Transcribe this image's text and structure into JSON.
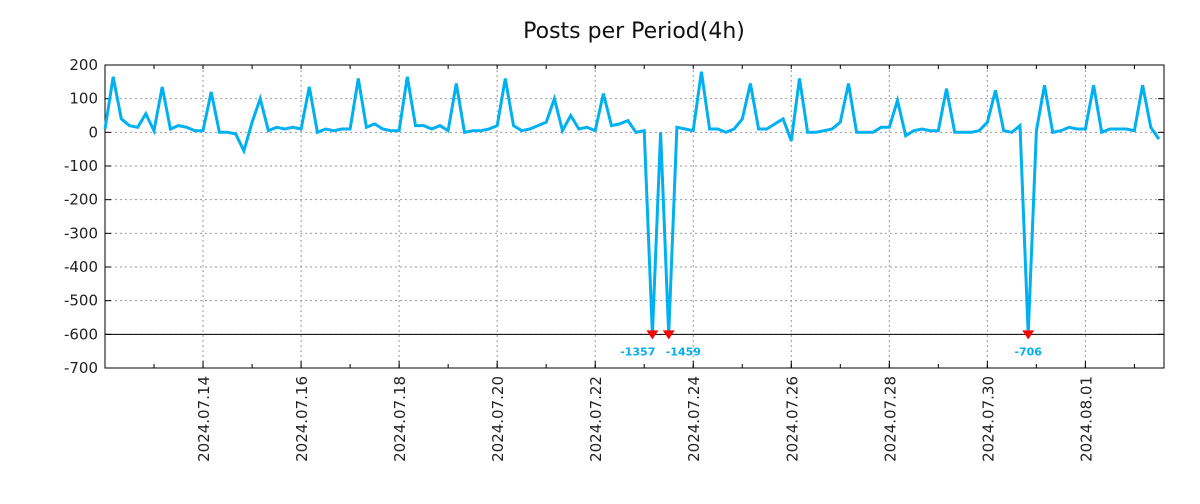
{
  "chart_data": {
    "type": "line",
    "title": "Posts per Period(4h)",
    "xlabel": "",
    "ylabel": "",
    "ylim": [
      -700,
      200
    ],
    "clip_floor": -600,
    "grid": true,
    "period_hours": 4,
    "start_date": "2024.07.12",
    "y_ticks": [
      "200",
      "100",
      "0",
      "-100",
      "-200",
      "-300",
      "-400",
      "-500",
      "-600",
      "-700"
    ],
    "x_tick_labels": [
      "2024.07.14",
      "2024.07.16",
      "2024.07.18",
      "2024.07.20",
      "2024.07.22",
      "2024.07.24",
      "2024.07.26",
      "2024.07.28",
      "2024.07.30",
      "2024.08.01"
    ],
    "series": [
      {
        "name": "posts",
        "color": "#00b0f0",
        "values": [
          10,
          165,
          40,
          20,
          15,
          55,
          5,
          135,
          10,
          20,
          15,
          5,
          5,
          120,
          0,
          0,
          -5,
          -55,
          30,
          100,
          5,
          15,
          10,
          15,
          10,
          135,
          0,
          10,
          5,
          10,
          10,
          160,
          15,
          25,
          10,
          5,
          5,
          165,
          20,
          20,
          10,
          20,
          5,
          145,
          0,
          5,
          5,
          10,
          20,
          160,
          20,
          5,
          10,
          20,
          30,
          100,
          5,
          50,
          10,
          15,
          5,
          115,
          20,
          25,
          35,
          0,
          5,
          -1357,
          0,
          -1459,
          15,
          10,
          5,
          180,
          10,
          10,
          0,
          10,
          40,
          145,
          10,
          10,
          25,
          40,
          -25,
          160,
          0,
          0,
          5,
          10,
          30,
          145,
          0,
          0,
          0,
          15,
          15,
          95,
          -10,
          5,
          10,
          5,
          5,
          130,
          0,
          0,
          0,
          5,
          30,
          125,
          5,
          0,
          20,
          -706,
          5,
          140,
          0,
          5,
          15,
          10,
          10,
          140,
          0,
          10,
          10,
          10,
          5,
          140,
          15,
          -20
        ]
      }
    ],
    "annotations": [
      {
        "index": 67,
        "label": "-1357"
      },
      {
        "index": 69,
        "label": "-1459"
      },
      {
        "index": 113,
        "label": "-706"
      }
    ],
    "marker_color": "#ff0000"
  }
}
